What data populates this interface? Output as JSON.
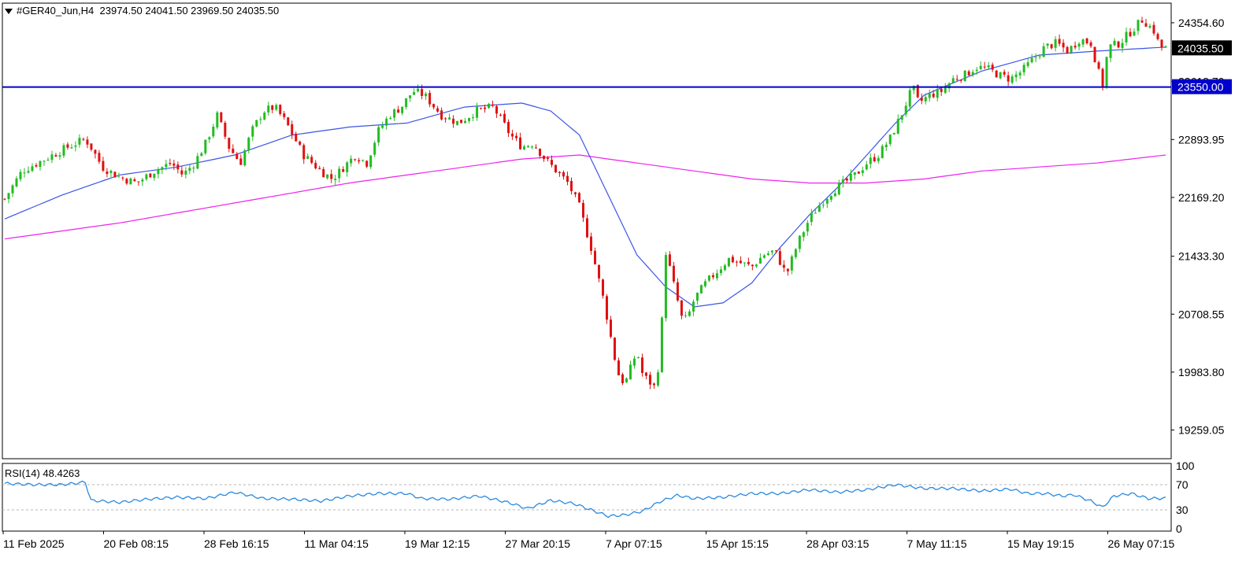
{
  "header": {
    "symbol_tf": "#GER40_Jun,H4",
    "ohlc": "23974.50 24041.50 23969.50 24035.50"
  },
  "rsi": {
    "label": "RSI(14) 48.4263"
  },
  "colors": {
    "bull": "#22bb22",
    "bear": "#e01010",
    "ma_fast": "#3a55e6",
    "ma_slow": "#ee22ee",
    "level_line": "#0000cc",
    "rsi_line": "#2a8ae0",
    "grid_dotted": "#b5b5b5"
  },
  "chart_data": [
    {
      "type": "candlestick",
      "symbol": "#GER40_Jun",
      "timeframe": "H4",
      "ylim": [
        18900,
        24600
      ],
      "y_ticks": [
        "24354.60",
        "23618.70",
        "22893.95",
        "22169.20",
        "21433.30",
        "20708.55",
        "19983.80",
        "19259.05"
      ],
      "y_tick_values": [
        24354.6,
        23618.7,
        22893.95,
        22169.2,
        21433.3,
        20708.55,
        19983.8,
        19259.05
      ],
      "x_tick_labels": [
        "11 Feb 2025",
        "20 Feb 08:15",
        "28 Feb 16:15",
        "11 Mar 04:15",
        "19 Mar 12:15",
        "27 Mar 20:15",
        "7 Apr 07:15",
        "15 Apr 15:15",
        "28 Apr 03:15",
        "7 May 11:15",
        "15 May 19:15",
        "26 May 07:15"
      ],
      "last_price": {
        "label": "24035.50",
        "value": 24035.5
      },
      "horizontal_level": {
        "label": "23550.00",
        "value": 23550.0
      },
      "bar_count": 296,
      "price_path": [
        [
          0,
          22150
        ],
        [
          6,
          22500
        ],
        [
          14,
          22650
        ],
        [
          22,
          22800
        ],
        [
          28,
          22900
        ],
        [
          30,
          22800
        ],
        [
          34,
          22550
        ],
        [
          40,
          22420
        ],
        [
          46,
          22350
        ],
        [
          52,
          22500
        ],
        [
          58,
          22600
        ],
        [
          62,
          22450
        ],
        [
          66,
          22600
        ],
        [
          70,
          22850
        ],
        [
          74,
          23200
        ],
        [
          78,
          22800
        ],
        [
          82,
          22600
        ],
        [
          86,
          23000
        ],
        [
          90,
          23250
        ],
        [
          94,
          23300
        ],
        [
          98,
          23100
        ],
        [
          104,
          22700
        ],
        [
          110,
          22500
        ],
        [
          114,
          22400
        ],
        [
          118,
          22550
        ],
        [
          122,
          22700
        ],
        [
          126,
          22600
        ],
        [
          130,
          23000
        ],
        [
          134,
          23200
        ],
        [
          138,
          23300
        ],
        [
          142,
          23500
        ],
        [
          146,
          23450
        ],
        [
          152,
          23200
        ],
        [
          158,
          23100
        ],
        [
          164,
          23250
        ],
        [
          170,
          23300
        ],
        [
          176,
          22950
        ],
        [
          180,
          22800
        ],
        [
          184,
          22850
        ],
        [
          188,
          22650
        ],
        [
          192,
          22500
        ],
        [
          196,
          22350
        ],
        [
          200,
          22050
        ],
        [
          204,
          21550
        ],
        [
          208,
          20950
        ],
        [
          210,
          20600
        ],
        [
          212,
          20200
        ],
        [
          214,
          19900
        ],
        [
          216,
          19850
        ],
        [
          218,
          20050
        ],
        [
          220,
          20250
        ],
        [
          222,
          19950
        ],
        [
          226,
          19800
        ],
        [
          228,
          20150
        ],
        [
          230,
          21500
        ],
        [
          232,
          21200
        ],
        [
          234,
          20900
        ],
        [
          236,
          20600
        ],
        [
          238,
          20700
        ],
        [
          240,
          20900
        ],
        [
          244,
          21100
        ],
        [
          248,
          21250
        ],
        [
          252,
          21400
        ],
        [
          256,
          21350
        ],
        [
          260,
          21300
        ],
        [
          264,
          21450
        ],
        [
          268,
          21500
        ],
        [
          272,
          21200
        ],
        [
          276,
          21600
        ],
        [
          280,
          21900
        ],
        [
          284,
          22100
        ],
        [
          288,
          22250
        ],
        [
          292,
          22350
        ],
        [
          296,
          22450
        ],
        [
          300,
          22600
        ],
        [
          304,
          22700
        ],
        [
          308,
          22900
        ],
        [
          312,
          23200
        ],
        [
          316,
          23550
        ],
        [
          318,
          23350
        ],
        [
          322,
          23450
        ],
        [
          326,
          23500
        ],
        [
          330,
          23650
        ],
        [
          334,
          23700
        ],
        [
          338,
          23800
        ],
        [
          342,
          23780
        ],
        [
          346,
          23700
        ],
        [
          350,
          23650
        ],
        [
          354,
          23750
        ],
        [
          358,
          23900
        ],
        [
          362,
          24050
        ],
        [
          366,
          24100
        ],
        [
          370,
          24000
        ],
        [
          374,
          24150
        ],
        [
          378,
          24100
        ],
        [
          382,
          23550
        ],
        [
          384,
          24050
        ],
        [
          388,
          24100
        ],
        [
          392,
          24250
        ],
        [
          396,
          24400
        ],
        [
          400,
          24250
        ],
        [
          402,
          24050
        ],
        [
          404,
          24035
        ]
      ],
      "ma_fast_path": [
        [
          0,
          21900
        ],
        [
          20,
          22200
        ],
        [
          40,
          22450
        ],
        [
          60,
          22550
        ],
        [
          80,
          22700
        ],
        [
          100,
          22950
        ],
        [
          120,
          23050
        ],
        [
          140,
          23100
        ],
        [
          160,
          23300
        ],
        [
          180,
          23350
        ],
        [
          190,
          23250
        ],
        [
          200,
          22950
        ],
        [
          210,
          22200
        ],
        [
          220,
          21450
        ],
        [
          230,
          21050
        ],
        [
          240,
          20800
        ],
        [
          250,
          20850
        ],
        [
          260,
          21100
        ],
        [
          270,
          21550
        ],
        [
          280,
          21950
        ],
        [
          290,
          22300
        ],
        [
          300,
          22700
        ],
        [
          310,
          23100
        ],
        [
          320,
          23450
        ],
        [
          330,
          23600
        ],
        [
          340,
          23750
        ],
        [
          350,
          23850
        ],
        [
          360,
          23950
        ],
        [
          380,
          24000
        ],
        [
          404,
          24050
        ]
      ],
      "ma_slow_path": [
        [
          0,
          21650
        ],
        [
          40,
          21850
        ],
        [
          80,
          22100
        ],
        [
          120,
          22350
        ],
        [
          160,
          22550
        ],
        [
          180,
          22650
        ],
        [
          200,
          22700
        ],
        [
          220,
          22600
        ],
        [
          240,
          22500
        ],
        [
          260,
          22400
        ],
        [
          280,
          22350
        ],
        [
          300,
          22350
        ],
        [
          320,
          22400
        ],
        [
          340,
          22500
        ],
        [
          360,
          22550
        ],
        [
          380,
          22600
        ],
        [
          404,
          22700
        ]
      ]
    },
    {
      "type": "line",
      "name": "RSI(14)",
      "last_value": 48.4263,
      "ylim": [
        0,
        100
      ],
      "y_ticks": [
        "100",
        "70",
        "30",
        "0"
      ],
      "levels": [
        70,
        30
      ],
      "path": [
        [
          0,
          72
        ],
        [
          10,
          70
        ],
        [
          20,
          70
        ],
        [
          28,
          74
        ],
        [
          30,
          45
        ],
        [
          40,
          42
        ],
        [
          50,
          47
        ],
        [
          60,
          50
        ],
        [
          70,
          48
        ],
        [
          80,
          58
        ],
        [
          90,
          48
        ],
        [
          100,
          47
        ],
        [
          110,
          44
        ],
        [
          120,
          52
        ],
        [
          130,
          56
        ],
        [
          140,
          56
        ],
        [
          145,
          48
        ],
        [
          155,
          47
        ],
        [
          165,
          52
        ],
        [
          175,
          42
        ],
        [
          182,
          32
        ],
        [
          190,
          45
        ],
        [
          198,
          40
        ],
        [
          204,
          30
        ],
        [
          210,
          20
        ],
        [
          216,
          22
        ],
        [
          222,
          28
        ],
        [
          228,
          43
        ],
        [
          234,
          53
        ],
        [
          240,
          48
        ],
        [
          250,
          50
        ],
        [
          260,
          56
        ],
        [
          270,
          56
        ],
        [
          280,
          62
        ],
        [
          290,
          58
        ],
        [
          300,
          62
        ],
        [
          310,
          70
        ],
        [
          320,
          64
        ],
        [
          330,
          64
        ],
        [
          340,
          60
        ],
        [
          350,
          63
        ],
        [
          356,
          56
        ],
        [
          362,
          56
        ],
        [
          368,
          52
        ],
        [
          372,
          54
        ],
        [
          378,
          44
        ],
        [
          382,
          34
        ],
        [
          386,
          52
        ],
        [
          392,
          56
        ],
        [
          398,
          48
        ],
        [
          404,
          48.4263
        ]
      ]
    }
  ]
}
